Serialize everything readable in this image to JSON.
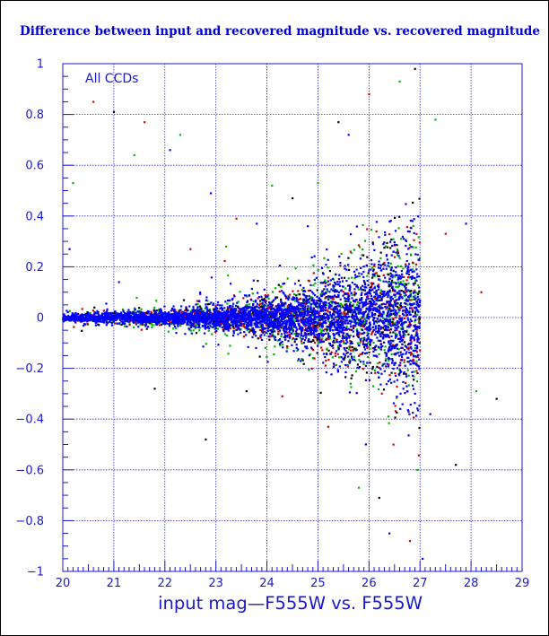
{
  "chart_data": {
    "type": "scatter",
    "title": "Difference between input and recovered magnitude vs. recovered magnitude",
    "xlabel": "input mag—F555W vs. F555W",
    "ylabel": "",
    "annotation": "All CCDs",
    "xlim": [
      20,
      29
    ],
    "ylim": [
      -1,
      1
    ],
    "x_ticks": [
      20,
      21,
      22,
      23,
      24,
      25,
      26,
      27,
      28,
      29
    ],
    "y_ticks": [
      -1,
      -0.8,
      -0.6,
      -0.4,
      -0.2,
      0,
      0.2,
      0.4,
      0.6,
      0.8,
      1
    ],
    "x_tick_labels": [
      "20",
      "21",
      "22",
      "23",
      "24",
      "25",
      "26",
      "27",
      "28",
      "29"
    ],
    "y_tick_labels": [
      "−1",
      "−0.8",
      "−0.6",
      "−0.4",
      "−0.2",
      "0",
      "0.2",
      "0.4",
      "0.6",
      "0.8",
      "1"
    ],
    "grid": true,
    "legend": "none",
    "distribution": {
      "x_min": 20,
      "x_cutoff": 27,
      "scatter_at_bright": 0.015,
      "scatter_at_faint": 0.2
    },
    "series": [
      {
        "color": "#0000ff",
        "points": 1900
      },
      {
        "color": "#00b400",
        "points": 900
      },
      {
        "color": "#d00000",
        "points": 650
      },
      {
        "color": "#000000",
        "points": 550
      }
    ],
    "outliers": [
      [
        20.13,
        0.27
      ],
      [
        20.2,
        0.53
      ],
      [
        20.6,
        0.85
      ],
      [
        21.0,
        0.81
      ],
      [
        21.1,
        0.14
      ],
      [
        21.4,
        0.64
      ],
      [
        21.6,
        0.77
      ],
      [
        21.8,
        -0.28
      ],
      [
        22.1,
        0.66
      ],
      [
        22.3,
        0.72
      ],
      [
        22.5,
        0.27
      ],
      [
        22.8,
        -0.48
      ],
      [
        22.9,
        0.49
      ],
      [
        23.2,
        0.28
      ],
      [
        23.4,
        0.39
      ],
      [
        23.6,
        -0.29
      ],
      [
        23.8,
        0.37
      ],
      [
        24.1,
        0.52
      ],
      [
        24.3,
        -0.31
      ],
      [
        24.5,
        0.47
      ],
      [
        24.8,
        0.36
      ],
      [
        25.0,
        0.53
      ],
      [
        25.2,
        -0.43
      ],
      [
        25.4,
        0.77
      ],
      [
        25.6,
        0.72
      ],
      [
        25.8,
        -0.67
      ],
      [
        26.0,
        0.88
      ],
      [
        26.2,
        -0.71
      ],
      [
        26.4,
        -0.85
      ],
      [
        26.6,
        0.93
      ],
      [
        26.8,
        -0.88
      ],
      [
        26.9,
        0.98
      ],
      [
        27.2,
        -0.38
      ],
      [
        27.3,
        0.78
      ],
      [
        27.5,
        0.33
      ],
      [
        27.7,
        -0.58
      ],
      [
        27.9,
        0.37
      ],
      [
        28.1,
        -0.29
      ],
      [
        28.2,
        0.1
      ],
      [
        28.5,
        -0.32
      ],
      [
        27.05,
        -0.95
      ],
      [
        26.95,
        -0.6
      ]
    ]
  }
}
